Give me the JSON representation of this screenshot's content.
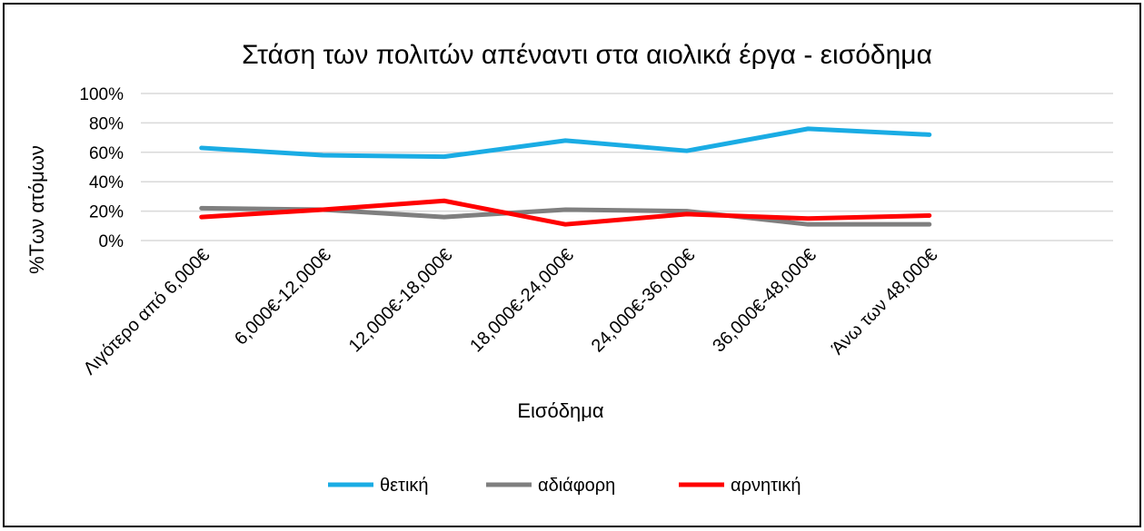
{
  "chart_data": {
    "type": "line",
    "title": "Στάση των πολιτών απέναντι στα αιολικά έργα - εισόδημα",
    "xlabel": "Εισόδημα",
    "ylabel": "%Των ατόμων",
    "categories": [
      "Λιγότερο από 6,000€",
      "6,000€-12,000€",
      "12,000€-18,000€",
      "18,000€-24,000€",
      "24,000€-36,000€",
      "36,000€-48,000€",
      "Άνω των 48,000€"
    ],
    "ylim": [
      0,
      100
    ],
    "yticks": [
      "0%",
      "20%",
      "40%",
      "60%",
      "80%",
      "100%"
    ],
    "grid": true,
    "legend_position": "bottom",
    "series": [
      {
        "name": "θετική",
        "color": "#1AACE4",
        "values": [
          63,
          58,
          57,
          68,
          61,
          76,
          72
        ]
      },
      {
        "name": "αδιάφορη",
        "color": "#7F7F7F",
        "values": [
          22,
          21,
          16,
          21,
          20,
          11,
          11
        ]
      },
      {
        "name": "αρνητική",
        "color": "#FF0000",
        "values": [
          16,
          21,
          27,
          11,
          18,
          15,
          17
        ]
      }
    ]
  }
}
